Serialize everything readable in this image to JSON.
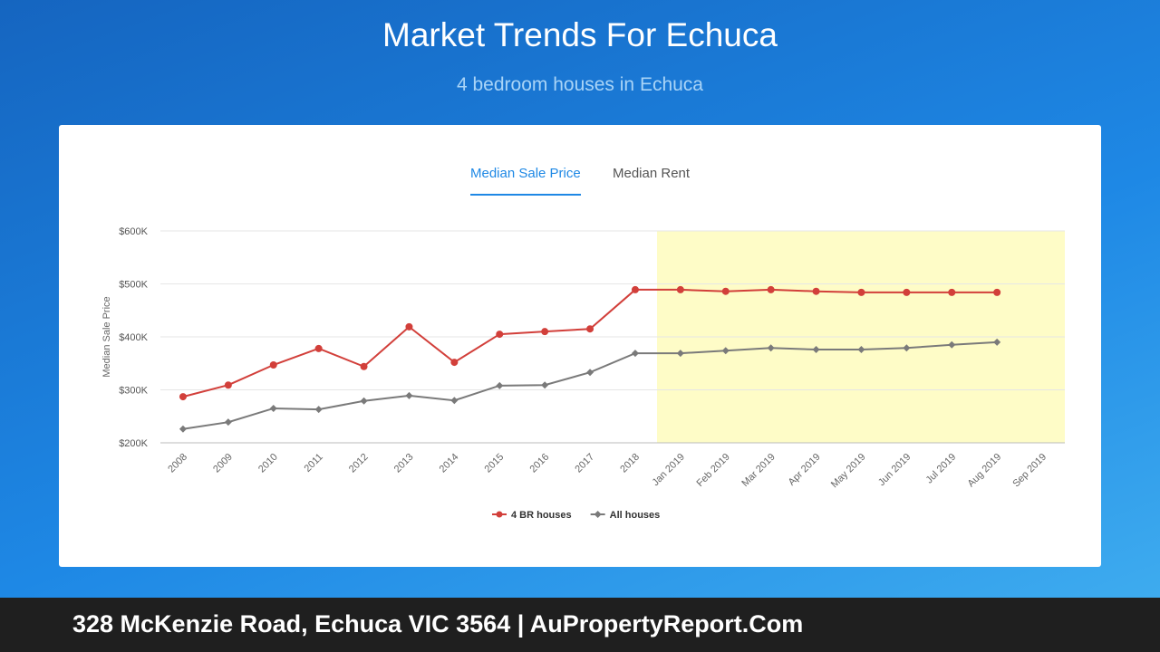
{
  "chart_data": {
    "type": "line",
    "title": "Market Trends For Echuca",
    "subtitle": "4 bedroom houses in Echuca",
    "ylabel": "Median Sale Price",
    "categories": [
      "2008",
      "2009",
      "2010",
      "2011",
      "2012",
      "2013",
      "2014",
      "2015",
      "2016",
      "2017",
      "2018",
      "Jan 2019",
      "Feb 2019",
      "Mar 2019",
      "Apr 2019",
      "May 2019",
      "Jun 2019",
      "Jul 2019",
      "Aug 2019",
      "Sep 2019"
    ],
    "series": [
      {
        "name": "4 BR houses",
        "color": "#d23f3a",
        "marker": "circle",
        "values": [
          287000,
          309000,
          347000,
          378000,
          344000,
          419000,
          352000,
          405000,
          410000,
          415000,
          489000,
          489000,
          486000,
          489000,
          486000,
          484000,
          484000,
          484000,
          484000,
          null
        ]
      },
      {
        "name": "All houses",
        "color": "#7a7a7a",
        "marker": "diamond",
        "values": [
          226000,
          239000,
          265000,
          263000,
          279000,
          289000,
          280000,
          308000,
          309000,
          333000,
          369000,
          369000,
          374000,
          379000,
          376000,
          376000,
          379000,
          385000,
          390000,
          null
        ]
      }
    ],
    "ylim": [
      200000,
      600000
    ],
    "yticks": [
      {
        "value": 200000,
        "label": "$200K"
      },
      {
        "value": 300000,
        "label": "$300K"
      },
      {
        "value": 400000,
        "label": "$400K"
      },
      {
        "value": 500000,
        "label": "$500K"
      },
      {
        "value": 600000,
        "label": "$600K"
      }
    ],
    "grid": true,
    "legend": "bottom"
  },
  "tabs": [
    "Median Sale Price",
    "Median Rent"
  ],
  "footer": "328 McKenzie Road, Echuca VIC 3564 | AuPropertyReport.Com"
}
